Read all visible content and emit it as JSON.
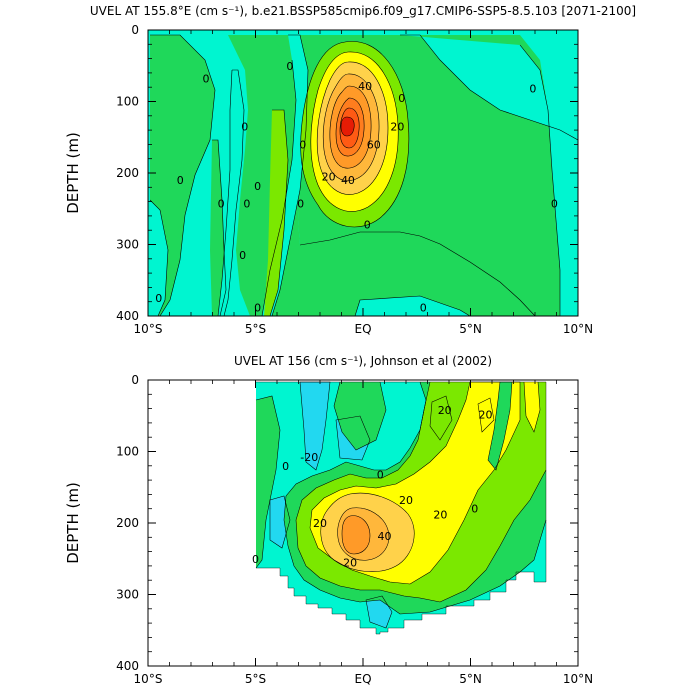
{
  "chart_data": [
    {
      "type": "contour",
      "title": "UVEL AT 155.8°E (cm s⁻¹), b.e21.BSSP585cmip6.f09_g17.CMIP6-SSP5-8.5.103 [2071-2100]",
      "ylabel": "DEPTH (m)",
      "x_tick_labels": [
        "10°S",
        "5°S",
        "EQ",
        "5°N",
        "10°N"
      ],
      "x_ticks_lat": [
        -10,
        -5,
        0,
        5,
        10
      ],
      "y_ticks": [
        0,
        100,
        200,
        300,
        400
      ],
      "xlim": [
        -10,
        10
      ],
      "ylim": [
        400,
        0
      ],
      "contour_labels": [
        {
          "text": "40",
          "lat": 0.1,
          "depth": 78
        },
        {
          "text": "20",
          "lat": 1.6,
          "depth": 135
        },
        {
          "text": "60",
          "lat": 0.5,
          "depth": 160
        },
        {
          "text": "40",
          "lat": -0.7,
          "depth": 210
        },
        {
          "text": "20",
          "lat": -1.6,
          "depth": 205
        },
        {
          "text": "0",
          "lat": 1.8,
          "depth": 95
        },
        {
          "text": "0",
          "lat": 7.9,
          "depth": 82
        },
        {
          "text": "0",
          "lat": -3.4,
          "depth": 50
        },
        {
          "text": "0",
          "lat": -7.3,
          "depth": 68
        },
        {
          "text": "0",
          "lat": -5.5,
          "depth": 135
        },
        {
          "text": "0",
          "lat": -2.8,
          "depth": 160
        },
        {
          "text": "0",
          "lat": -8.5,
          "depth": 210
        },
        {
          "text": "0",
          "lat": -6.6,
          "depth": 243
        },
        {
          "text": "0",
          "lat": -5.4,
          "depth": 243
        },
        {
          "text": "0",
          "lat": -4.9,
          "depth": 218
        },
        {
          "text": "0",
          "lat": -2.9,
          "depth": 243
        },
        {
          "text": "0",
          "lat": 0.2,
          "depth": 272
        },
        {
          "text": "0",
          "lat": 8.9,
          "depth": 243
        },
        {
          "text": "0",
          "lat": -5.6,
          "depth": 315
        },
        {
          "text": "0",
          "lat": -9.5,
          "depth": 375
        },
        {
          "text": "0",
          "lat": -4.9,
          "depth": 388
        },
        {
          "text": "0",
          "lat": 2.8,
          "depth": 388
        }
      ]
    },
    {
      "type": "contour",
      "title": "UVEL AT 156 (cm s⁻¹), Johnson et al (2002)",
      "ylabel": "DEPTH (m)",
      "x_tick_labels": [
        "10°S",
        "5°S",
        "EQ",
        "5°N",
        "10°N"
      ],
      "x_ticks_lat": [
        -10,
        -5,
        0,
        5,
        10
      ],
      "y_ticks": [
        0,
        100,
        200,
        300,
        400
      ],
      "xlim": [
        -10,
        10
      ],
      "ylim": [
        400,
        0
      ],
      "contour_labels": [
        {
          "text": "20",
          "lat": 3.8,
          "depth": 42
        },
        {
          "text": "20",
          "lat": 5.7,
          "depth": 48
        },
        {
          "text": "-20",
          "lat": -2.5,
          "depth": 108
        },
        {
          "text": "0",
          "lat": 0.8,
          "depth": 132
        },
        {
          "text": "20",
          "lat": 2.0,
          "depth": 168
        },
        {
          "text": "20",
          "lat": -2.0,
          "depth": 200
        },
        {
          "text": "20",
          "lat": 3.6,
          "depth": 188
        },
        {
          "text": "40",
          "lat": 1.0,
          "depth": 218
        },
        {
          "text": "20",
          "lat": -0.6,
          "depth": 255
        },
        {
          "text": "0",
          "lat": -3.6,
          "depth": 120
        },
        {
          "text": "0",
          "lat": -5.0,
          "depth": 250
        },
        {
          "text": "0",
          "lat": 5.2,
          "depth": 180
        }
      ]
    }
  ]
}
